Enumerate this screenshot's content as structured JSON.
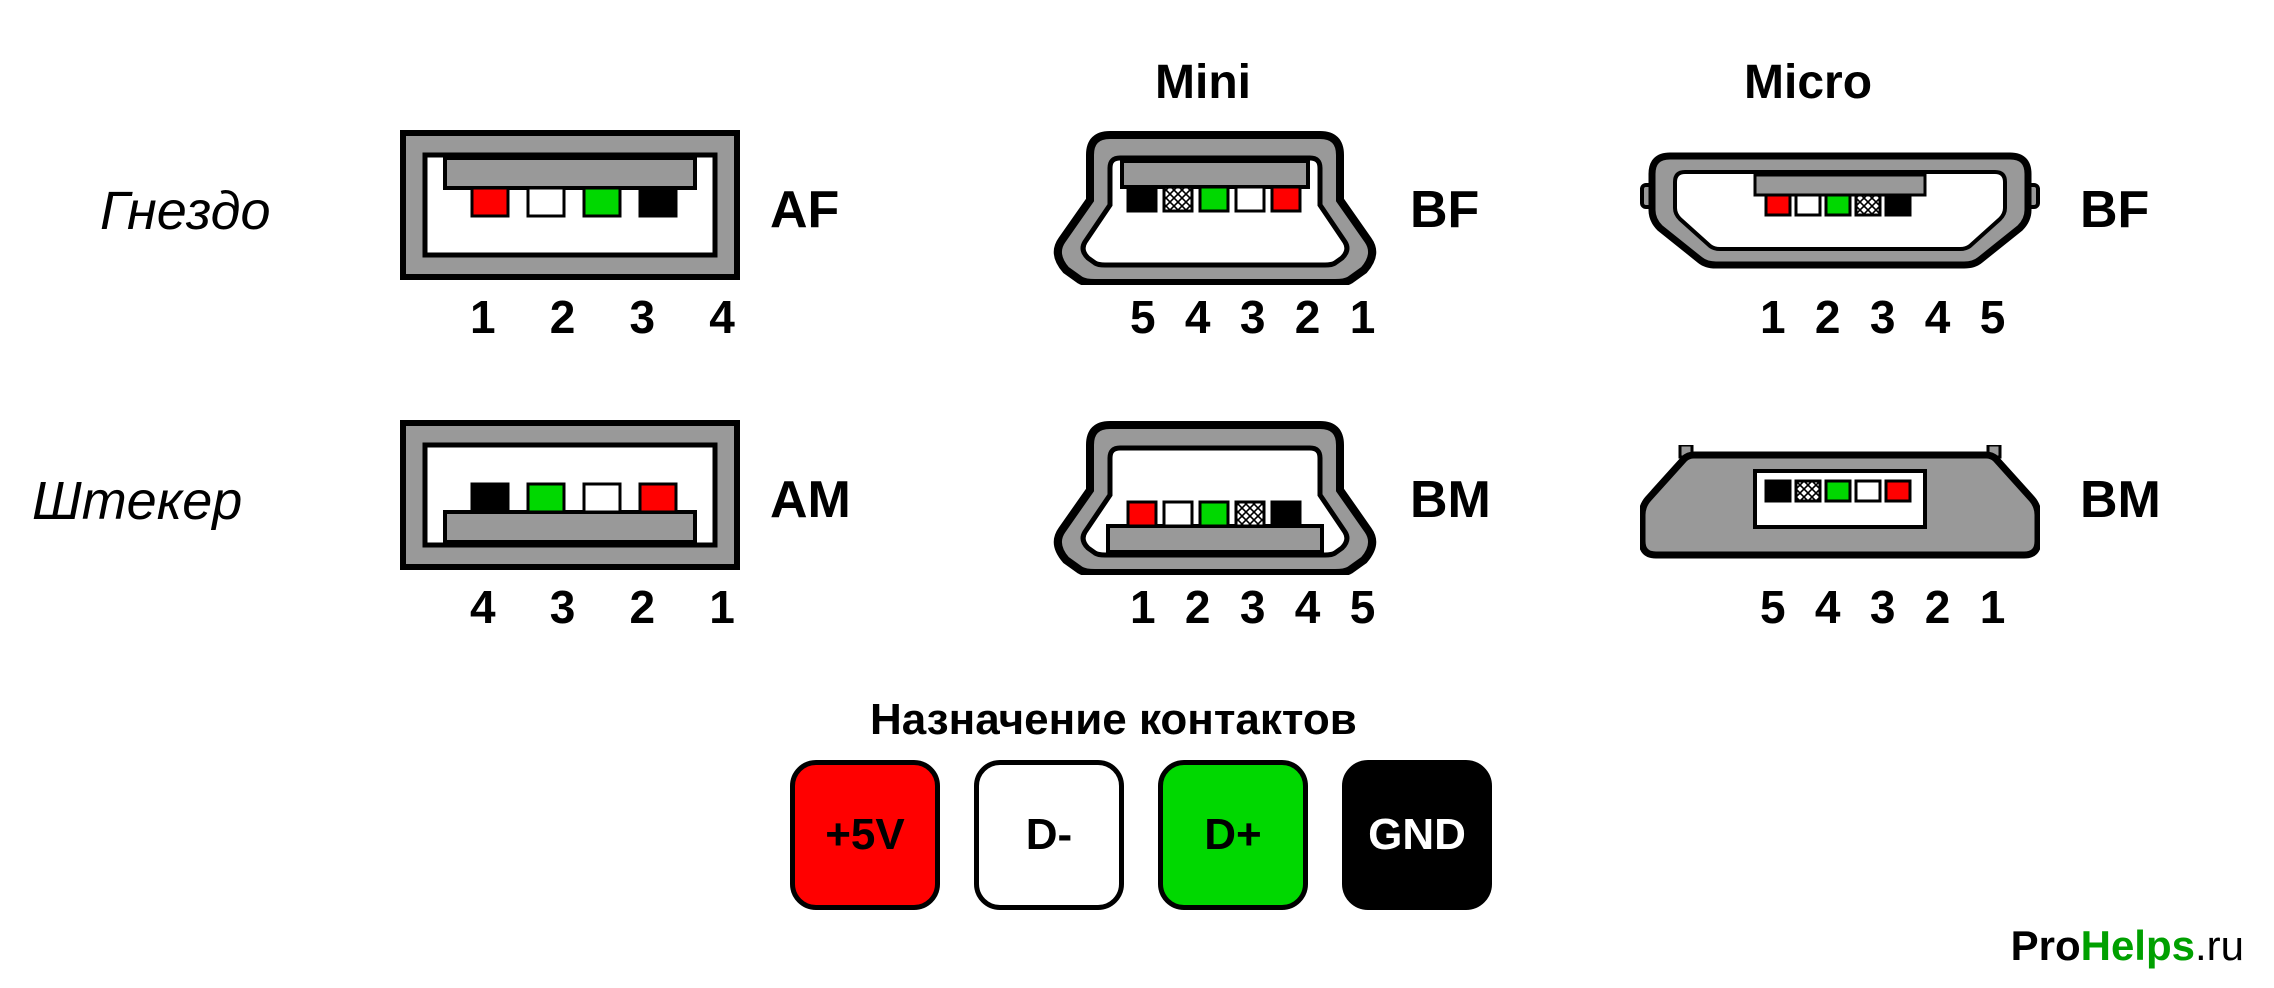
{
  "colors": {
    "red": "#ff0000",
    "white": "#ffffff",
    "green": "#00d800",
    "black": "#000000",
    "shell_grey": "#999999",
    "outline": "#000000",
    "legend_green_text": "#00a000"
  },
  "headers": {
    "mini": "Mini",
    "micro": "Micro"
  },
  "rows": {
    "socket": "Гнездо",
    "plug": "Штекер"
  },
  "connectors": {
    "af": {
      "label": "AF",
      "pins": [
        "red",
        "white",
        "green",
        "black"
      ],
      "hatched": [
        false,
        false,
        false,
        false
      ],
      "numbers": "1 2 3 4"
    },
    "am": {
      "label": "AM",
      "pins": [
        "black",
        "green",
        "white",
        "red"
      ],
      "hatched": [
        false,
        false,
        false,
        false
      ],
      "numbers": "4 3 2 1"
    },
    "mini_bf": {
      "label": "BF",
      "pins": [
        "black",
        "white",
        "green",
        "white",
        "red"
      ],
      "hatched": [
        false,
        true,
        false,
        false,
        false
      ],
      "numbers": "5 4 3 2 1"
    },
    "mini_bm": {
      "label": "BM",
      "pins": [
        "red",
        "white",
        "green",
        "white",
        "black"
      ],
      "hatched": [
        false,
        false,
        false,
        true,
        false
      ],
      "numbers": "1 2 3 4 5"
    },
    "micro_bf": {
      "label": "BF",
      "pins": [
        "red",
        "white",
        "green",
        "white",
        "black"
      ],
      "hatched": [
        false,
        false,
        false,
        true,
        false
      ],
      "numbers": "1 2 3 4 5"
    },
    "micro_bm": {
      "label": "BM",
      "pins": [
        "black",
        "white",
        "green",
        "white",
        "red"
      ],
      "hatched": [
        false,
        true,
        false,
        false,
        false
      ],
      "numbers": "5 4 3 2 1"
    }
  },
  "legend": {
    "title": "Назначение контактов",
    "items": [
      {
        "label": "+5V",
        "bg": "#ff0000",
        "fg": "#000000"
      },
      {
        "label": "D-",
        "bg": "#ffffff",
        "fg": "#000000"
      },
      {
        "label": "D+",
        "bg": "#00d800",
        "fg": "#000000"
      },
      {
        "label": "GND",
        "bg": "#000000",
        "fg": "#ffffff"
      }
    ]
  },
  "watermark": {
    "a": "Pro",
    "b": "Helps",
    "c": ".ru"
  },
  "svg": {
    "pin_w": 34,
    "pin_h": 26,
    "pin_gap": 12,
    "typeA_w": 340,
    "typeA_h": 150,
    "mini_w": 330,
    "mini_h": 150,
    "micro_w": 370,
    "micro_h": 110
  }
}
